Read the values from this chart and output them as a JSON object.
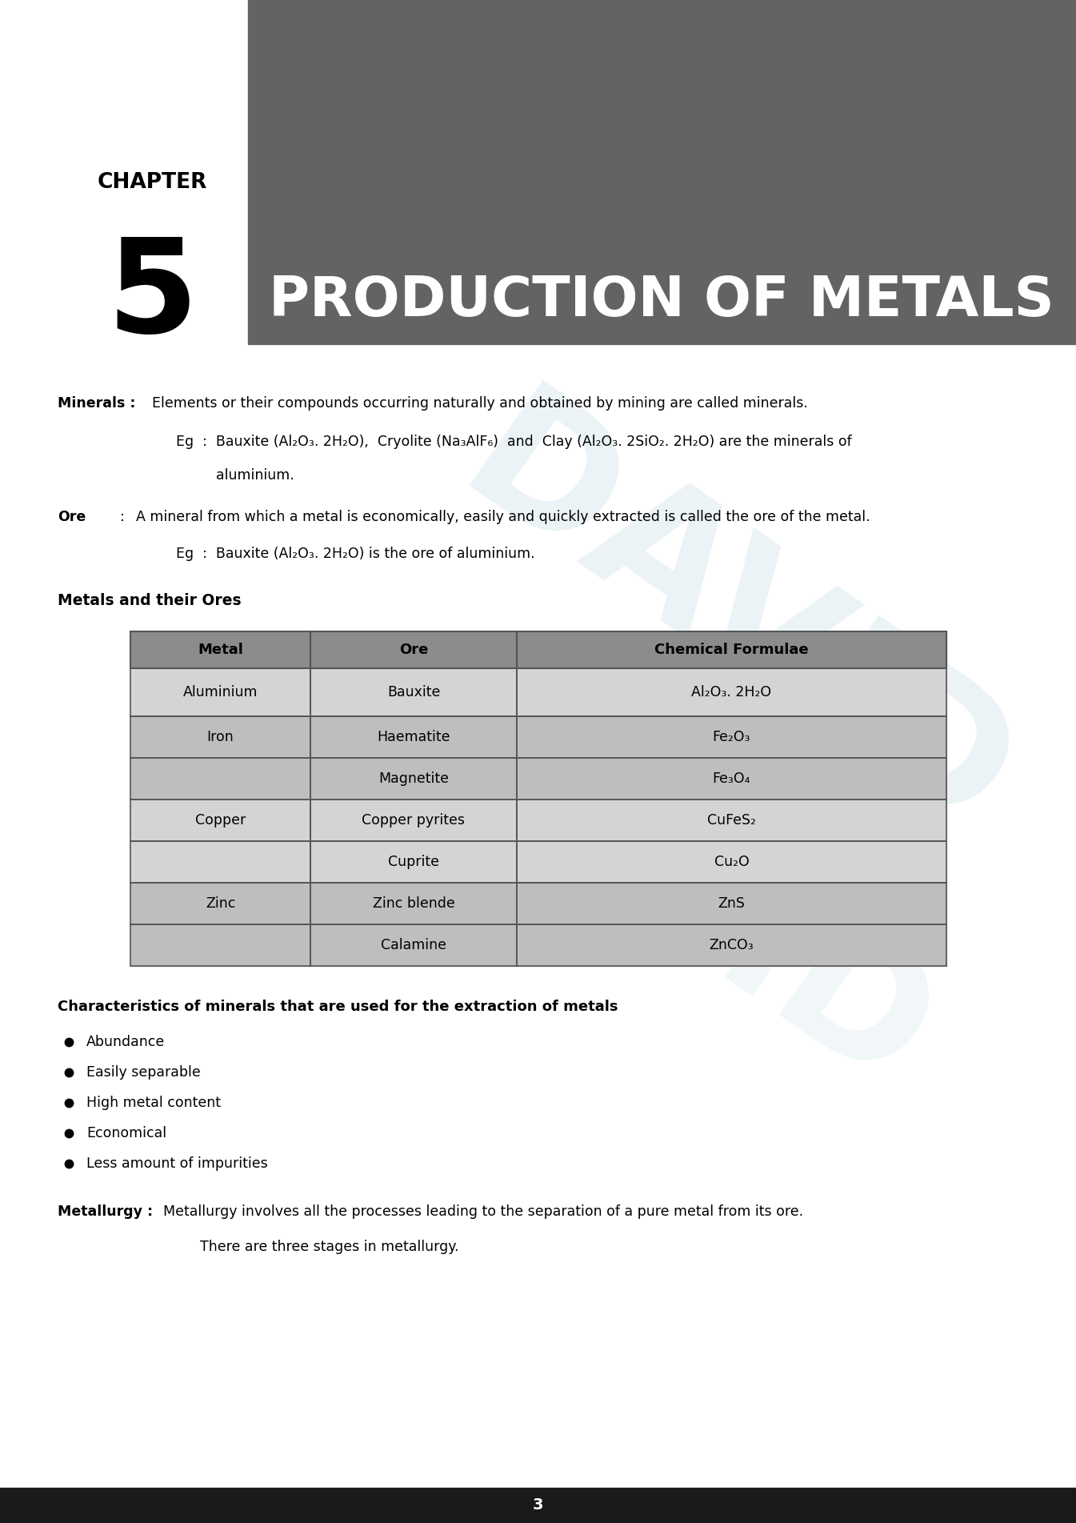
{
  "bg_color": "#ffffff",
  "header_gray": "#636363",
  "chapter_text": "CHAPTER",
  "chapter_num": "5",
  "chapter_title": "PRODUCTION OF METALS",
  "footer_bar_color": "#1a1a1a",
  "page_num": "3",
  "minerals_label": "Minerals :",
  "minerals_def": "Elements or their compounds occurring naturally and obtained by mining are called minerals.",
  "eg_minerals": "Eg  :  Bauxite (Al₂O₃. 2H₂O),  Cryolite (Na₃AlF₆)  and  Clay (Al₂O₃. 2SiO₂. 2H₂O) are the minerals of",
  "eg_minerals2": "aluminium.",
  "ore_label": "Ore",
  "ore_colon": ":",
  "ore_def": "A mineral from which a metal is economically, easily and quickly extracted is called the ore of the metal.",
  "eg_ore": "Eg  :  Bauxite (Al₂O₃. 2H₂O) is the ore of aluminium.",
  "metals_ores_heading": "Metals and their Ores",
  "table_headers": [
    "Metal",
    "Ore",
    "Chemical Formulae"
  ],
  "table_data": [
    [
      "Aluminium",
      "Bauxite",
      "Al₂O₃. 2H₂O"
    ],
    [
      "Iron",
      "Haematite",
      "Fe₂O₃"
    ],
    [
      "",
      "Magnetite",
      "Fe₃O₄"
    ],
    [
      "Copper",
      "Copper pyrites",
      "CuFeS₂"
    ],
    [
      "",
      "Cuprite",
      "Cu₂O"
    ],
    [
      "Zinc",
      "Zinc blende",
      "ZnS"
    ],
    [
      "",
      "Calamine",
      "ZnCO₃"
    ]
  ],
  "row_group_ids": [
    0,
    1,
    1,
    2,
    2,
    3,
    3
  ],
  "group_colors": [
    "#d4d4d4",
    "#bebebe",
    "#d4d4d4",
    "#bebebe"
  ],
  "header_row_color": "#8c8c8c",
  "char_heading": "Characteristics of minerals that are used for the extraction of metals",
  "char_list": [
    "Abundance",
    "Easily separable",
    "High metal content",
    "Economical",
    "Less amount of impurities"
  ],
  "metallurgy_label": "Metallurgy :",
  "metallurgy_def": "Metallurgy involves all the processes leading to the separation of a pure metal from its ore.",
  "metallurgy_def2": "There are three stages in metallurgy.",
  "watermark_text": "DAVID",
  "watermark_color": "#b8d4e0"
}
